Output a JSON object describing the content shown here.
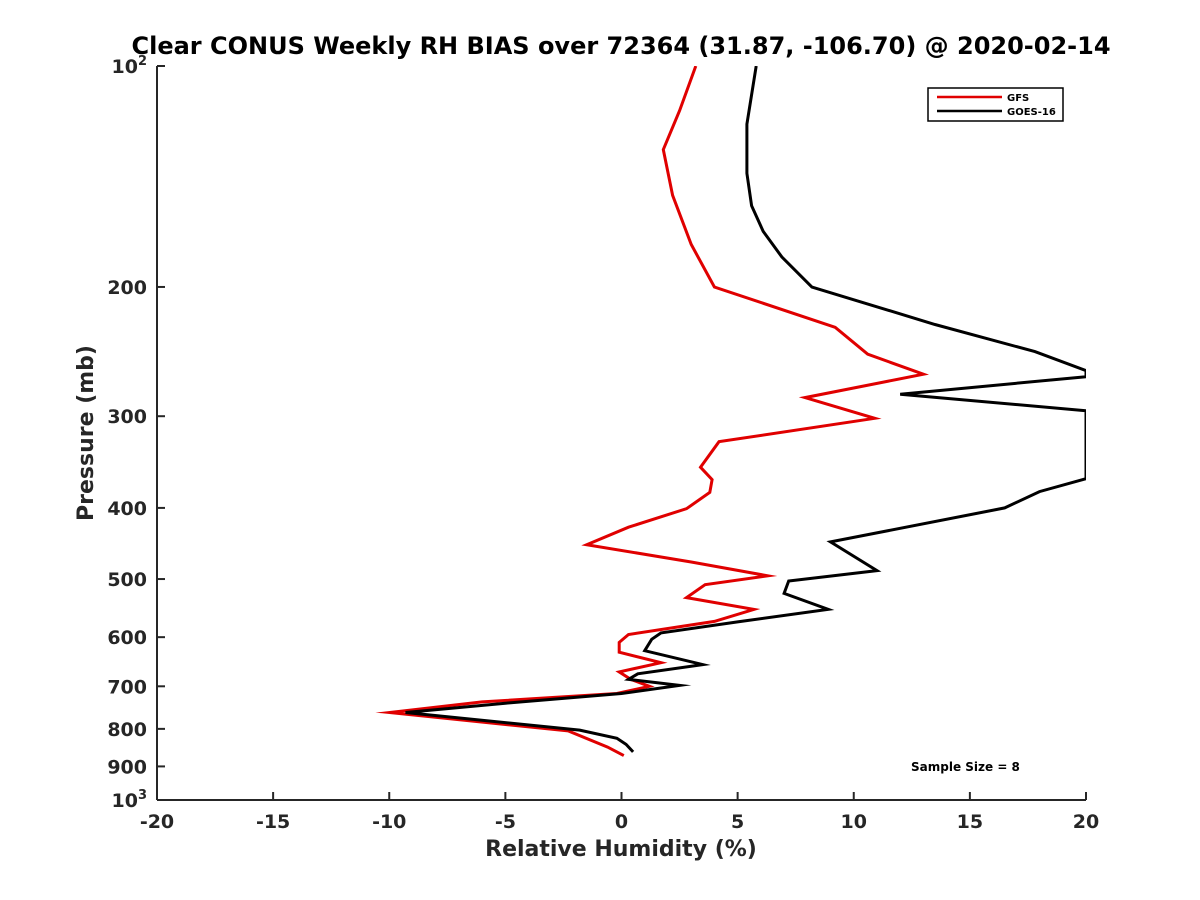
{
  "chart_data": {
    "type": "line",
    "title": "Clear CONUS Weekly RH BIAS over 72364 (31.87, -106.70) @ 2020-02-14",
    "xlabel": "Relative Humidity (%)",
    "ylabel": "Pressure (mb)",
    "xlim": [
      -20,
      20
    ],
    "ylim": [
      100,
      1000
    ],
    "yscale": "log",
    "y_reversed": true,
    "x_ticks": [
      -20,
      -15,
      -10,
      -5,
      0,
      5,
      10,
      15,
      20
    ],
    "x_tick_labels": [
      "-20",
      "-15",
      "-10",
      "-5",
      "0",
      "5",
      "10",
      "15",
      "20"
    ],
    "y_ticks": [
      {
        "value": 100,
        "base": "10",
        "exp": "2"
      },
      {
        "value": 200,
        "label": "200"
      },
      {
        "value": 300,
        "label": "300"
      },
      {
        "value": 400,
        "label": "400"
      },
      {
        "value": 500,
        "label": "500"
      },
      {
        "value": 600,
        "label": "600"
      },
      {
        "value": 700,
        "label": "700"
      },
      {
        "value": 800,
        "label": "800"
      },
      {
        "value": 900,
        "label": "900"
      },
      {
        "value": 1000,
        "base": "10",
        "exp": "3"
      }
    ],
    "grid": false,
    "legend_position": "top-right",
    "series": [
      {
        "name": "GFS",
        "color": "#e00000",
        "points": [
          {
            "x": 3.2,
            "y": 100
          },
          {
            "x": 2.5,
            "y": 115
          },
          {
            "x": 1.8,
            "y": 130
          },
          {
            "x": 2.2,
            "y": 150
          },
          {
            "x": 3.0,
            "y": 175
          },
          {
            "x": 4.0,
            "y": 200
          },
          {
            "x": 9.2,
            "y": 227
          },
          {
            "x": 10.6,
            "y": 247
          },
          {
            "x": 13.0,
            "y": 263
          },
          {
            "x": 7.9,
            "y": 283
          },
          {
            "x": 10.9,
            "y": 302
          },
          {
            "x": 4.2,
            "y": 325
          },
          {
            "x": 3.4,
            "y": 352
          },
          {
            "x": 3.9,
            "y": 366
          },
          {
            "x": 3.8,
            "y": 381
          },
          {
            "x": 2.8,
            "y": 401
          },
          {
            "x": 0.3,
            "y": 425
          },
          {
            "x": -1.5,
            "y": 449
          },
          {
            "x": 3.0,
            "y": 474
          },
          {
            "x": 6.3,
            "y": 495
          },
          {
            "x": 3.6,
            "y": 509
          },
          {
            "x": 2.8,
            "y": 530
          },
          {
            "x": 5.7,
            "y": 550
          },
          {
            "x": 4.0,
            "y": 571
          },
          {
            "x": 0.3,
            "y": 595
          },
          {
            "x": -0.1,
            "y": 610
          },
          {
            "x": -0.1,
            "y": 629
          },
          {
            "x": 1.7,
            "y": 650
          },
          {
            "x": -0.1,
            "y": 669
          },
          {
            "x": 0.4,
            "y": 685
          },
          {
            "x": 1.2,
            "y": 700
          },
          {
            "x": -0.2,
            "y": 716
          },
          {
            "x": -6.0,
            "y": 735
          },
          {
            "x": -10.0,
            "y": 760
          },
          {
            "x": -2.3,
            "y": 805
          },
          {
            "x": -0.6,
            "y": 847
          },
          {
            "x": 0.1,
            "y": 870
          }
        ]
      },
      {
        "name": "GOES-16",
        "color": "#000000",
        "points": [
          {
            "x": 5.8,
            "y": 100
          },
          {
            "x": 5.4,
            "y": 120
          },
          {
            "x": 5.4,
            "y": 140
          },
          {
            "x": 5.6,
            "y": 155
          },
          {
            "x": 6.1,
            "y": 168
          },
          {
            "x": 6.9,
            "y": 182
          },
          {
            "x": 8.2,
            "y": 200
          },
          {
            "x": 13.5,
            "y": 225
          },
          {
            "x": 17.8,
            "y": 245
          },
          {
            "x": 20.0,
            "y": 260
          },
          {
            "x": 20.0,
            "y": 265
          },
          {
            "x": 12.0,
            "y": 280
          },
          {
            "x": 20.0,
            "y": 295
          },
          {
            "x": 20.0,
            "y": 365
          },
          {
            "x": 18.0,
            "y": 380
          },
          {
            "x": 16.5,
            "y": 400
          },
          {
            "x": 9.0,
            "y": 445
          },
          {
            "x": 11.0,
            "y": 487
          },
          {
            "x": 7.2,
            "y": 503
          },
          {
            "x": 7.0,
            "y": 523
          },
          {
            "x": 8.9,
            "y": 550
          },
          {
            "x": 5.0,
            "y": 572
          },
          {
            "x": 1.7,
            "y": 592
          },
          {
            "x": 1.3,
            "y": 604
          },
          {
            "x": 1.0,
            "y": 626
          },
          {
            "x": 3.5,
            "y": 654
          },
          {
            "x": 0.7,
            "y": 673
          },
          {
            "x": 0.3,
            "y": 685
          },
          {
            "x": 2.5,
            "y": 698
          },
          {
            "x": 0.0,
            "y": 716
          },
          {
            "x": -5.0,
            "y": 738
          },
          {
            "x": -9.3,
            "y": 760
          },
          {
            "x": -1.8,
            "y": 803
          },
          {
            "x": -0.2,
            "y": 824
          },
          {
            "x": 0.2,
            "y": 840
          },
          {
            "x": 0.5,
            "y": 860
          }
        ]
      }
    ],
    "annotations": [
      "Sample Size = 8"
    ]
  }
}
